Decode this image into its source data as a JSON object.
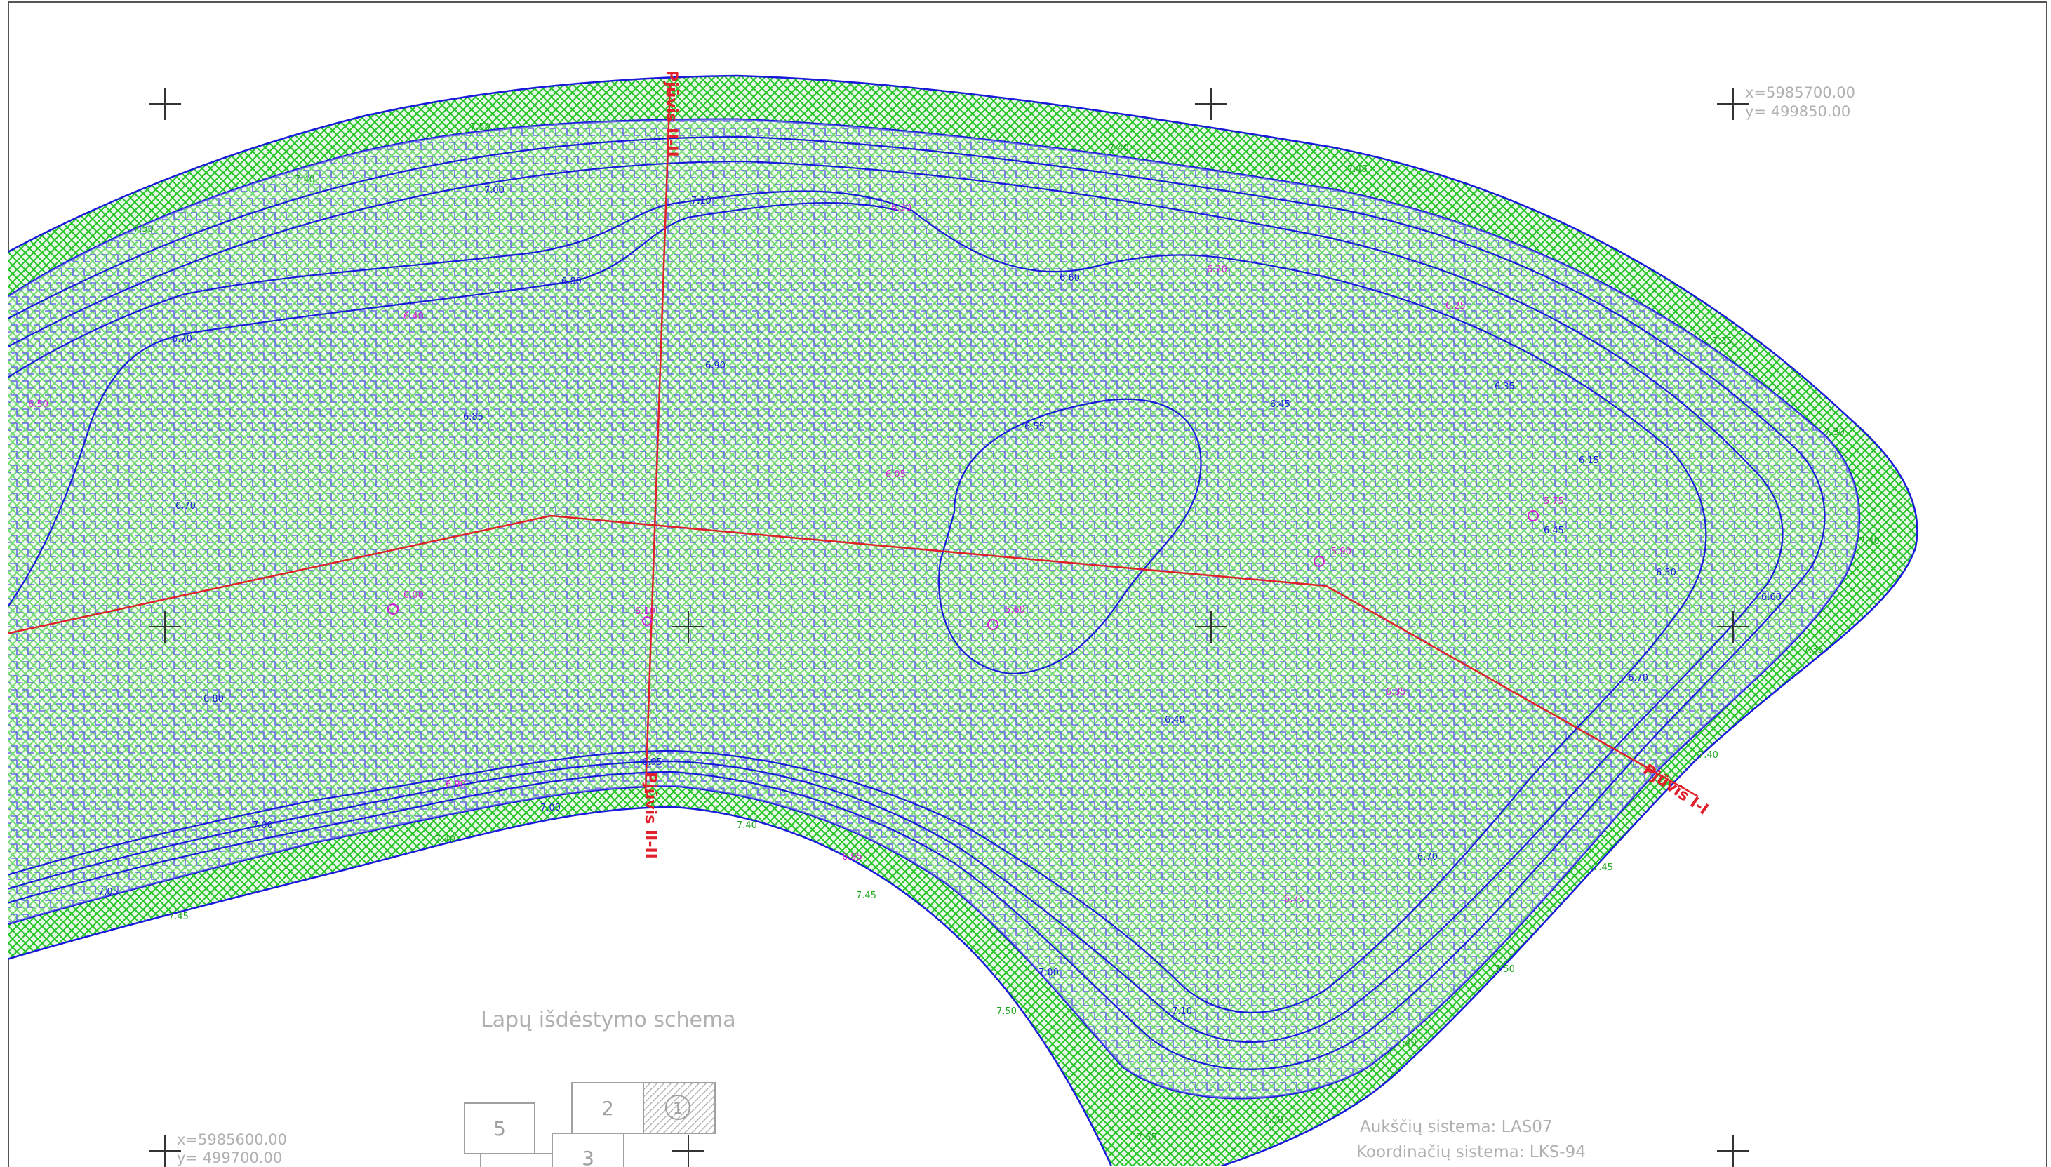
{
  "colors": {
    "frame": "#555555",
    "water_line": "#1a1adc",
    "hatch": "#1a1adc",
    "shore_green": "#22c422",
    "section_red": "#e0202a",
    "point_magenta": "#d41ed4",
    "gray_text": "#b0b0b0",
    "cross": "#333333"
  },
  "coordinates": {
    "top_right": {
      "x": "x=5985700.00",
      "y": "y=  499850.00"
    },
    "bottom_left": {
      "x": "x=5985600.00",
      "y": "y=  499700.00"
    }
  },
  "profiles": {
    "label_II": "Pjūvis II-II",
    "label_II_bottom": "Pjūvis II-II",
    "label_I": "Pjūvis I-I"
  },
  "sheet_layout": {
    "title": "Lapų išdėstymo schema",
    "sheets": [
      "5",
      "2",
      "1",
      "3"
    ]
  },
  "systems": {
    "height": "Aukščių sistema: LAS07",
    "coords": "Koordinačių sistema: LKS-94"
  }
}
